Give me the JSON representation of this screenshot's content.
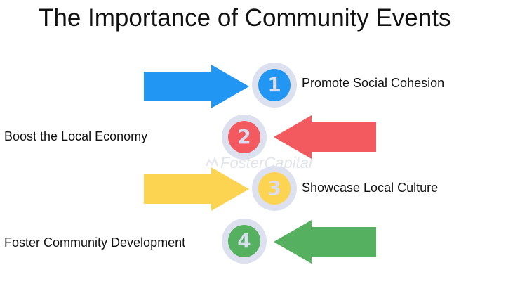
{
  "title": "The Importance of Community Events",
  "watermark": "FosterCapital",
  "steps": [
    {
      "number": "1",
      "label": "Promote Social Cohesion",
      "color": "#2196f3",
      "arrow": "points-right"
    },
    {
      "number": "2",
      "label": "Boost the Local Economy",
      "color": "#f25a5f",
      "arrow": "points-left"
    },
    {
      "number": "3",
      "label": "Showcase Local Culture",
      "color": "#fdd352",
      "arrow": "points-right"
    },
    {
      "number": "4",
      "label": "Foster Community Development",
      "color": "#55b060",
      "arrow": "points-left"
    }
  ]
}
